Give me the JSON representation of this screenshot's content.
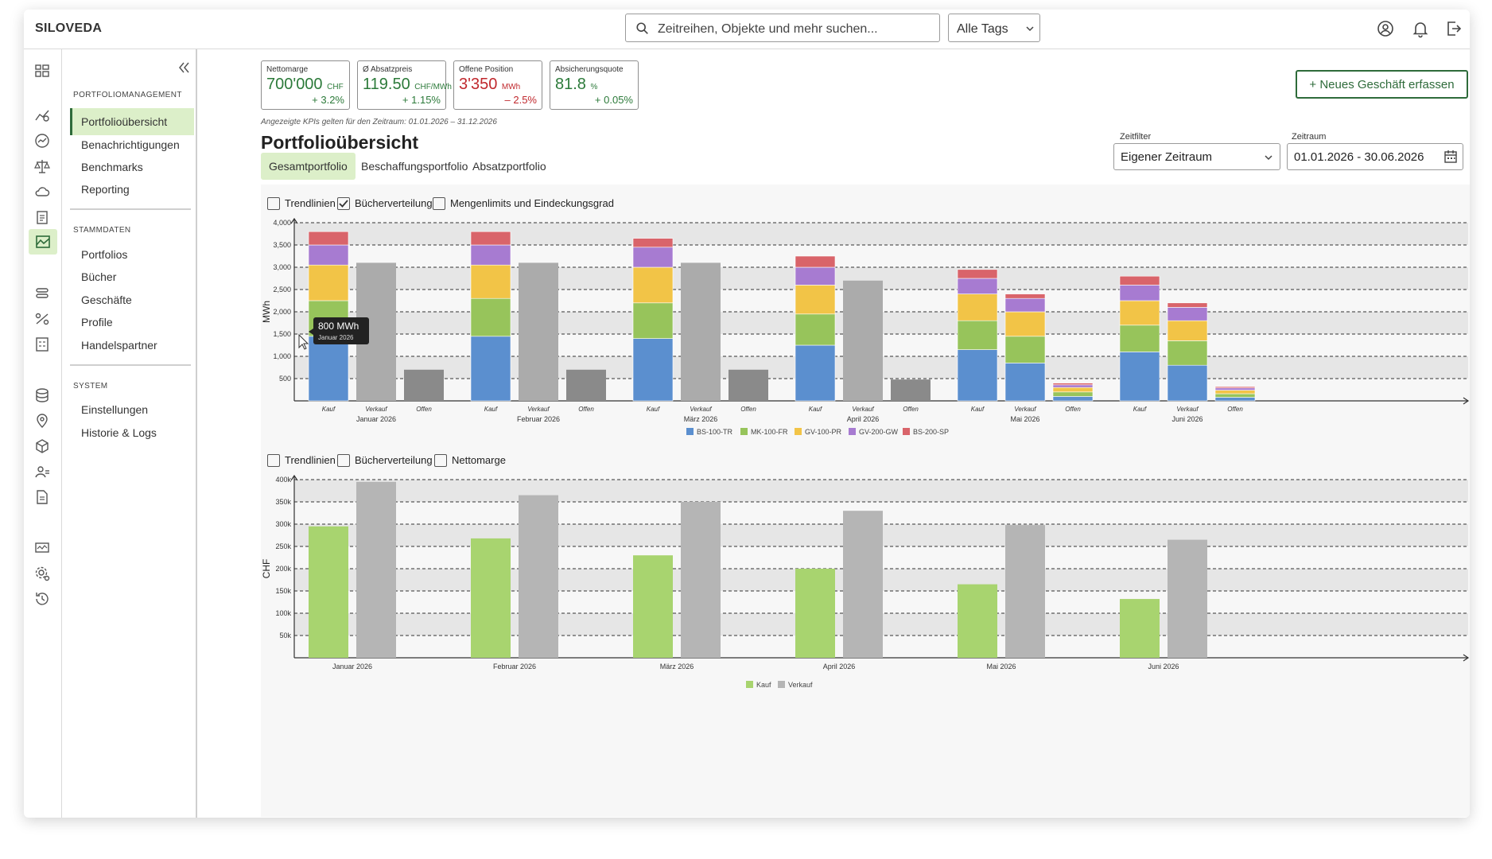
{
  "app": {
    "brand": "SILOVEDA"
  },
  "search": {
    "placeholder": "Zeitreihen, Objekte und mehr suchen...",
    "tags": "Alle Tags"
  },
  "sidebar": {
    "sections": [
      {
        "title": "PORTFOLIOMANAGEMENT",
        "items": [
          "Portfolioübersicht",
          "Benachrichtigungen",
          "Benchmarks",
          "Reporting"
        ]
      },
      {
        "title": "STAMMDATEN",
        "items": [
          "Portfolios",
          "Bücher",
          "Geschäfte",
          "Profile",
          "Handelspartner"
        ]
      },
      {
        "title": "SYSTEM",
        "items": [
          "Einstellungen",
          "Historie & Logs"
        ]
      }
    ],
    "active": "Portfolioübersicht"
  },
  "kpis": [
    {
      "label": "Nettomarge",
      "value": "700'000",
      "unit": "CHF",
      "delta": "+ 3.2%",
      "negative": false
    },
    {
      "label": "Ø Absatzpreis",
      "value": "119.50",
      "unit": "CHF/MWh",
      "delta": "+ 1.15%",
      "negative": false
    },
    {
      "label": "Offene Position",
      "value": "3'350",
      "unit": "MWh",
      "delta": "– 2.5%",
      "negative": true
    },
    {
      "label": "Absicherungsquote",
      "value": "81.8",
      "unit": "%",
      "delta": "+ 0.05%",
      "negative": false
    }
  ],
  "kpi_note": "Angezeigte KPIs gelten für den Zeitraum: 01.01.2026 – 31.12.2026",
  "new_button": "+ Neues Geschäft erfassen",
  "page_title": "Portfolioübersicht",
  "tabs": [
    "Gesamtportfolio",
    "Beschaffungsportfolio",
    "Absatzportfolio"
  ],
  "filters": {
    "zeitfilter_label": "Zeitfilter",
    "zeitfilter_value": "Eigener Zeitraum",
    "zeitraum_label": "Zeitraum",
    "zeitraum_value": "01.01.2026 - 30.06.2026"
  },
  "chart1_options": [
    {
      "label": "Trendlinien",
      "checked": false
    },
    {
      "label": "Bücherverteilung",
      "checked": true
    },
    {
      "label": "Mengenlimits und Eindeckungsgrad",
      "checked": false
    }
  ],
  "chart2_options": [
    {
      "label": "Trendlinien",
      "checked": false
    },
    {
      "label": "Bücherverteilung",
      "checked": false
    },
    {
      "label": "Nettomarge",
      "checked": false
    }
  ],
  "tooltip": {
    "value": "800 MWh",
    "month": "Januar 2026"
  },
  "colors": {
    "BS-100-TR": "#5b8fcf",
    "MK-100-FR": "#97c45b",
    "GV-100-PR": "#f2c447",
    "GV-200-GW": "#a77bd1",
    "BS-200-SP": "#d9646a",
    "verkauf": "#ababab",
    "offen": "#8a8a8a",
    "kauf2": "#a8d46f",
    "verkauf2": "#b5b5b5",
    "accent": "#2e6b3a"
  },
  "chart_data": [
    {
      "type": "bar",
      "ylabel": "MWh",
      "ylim": [
        0,
        4000
      ],
      "yticks": [
        "500",
        "1,000",
        "1,500",
        "2,000",
        "2,500",
        "3,000",
        "3,500",
        "4,000"
      ],
      "months": [
        "Januar 2026",
        "Februar 2026",
        "März 2026",
        "April 2026",
        "Mai 2026",
        "Juni 2026"
      ],
      "bar_labels": [
        "Kauf",
        "Verkauf",
        "Offen"
      ],
      "legend": [
        "BS-100-TR",
        "MK-100-FR",
        "GV-100-PR",
        "GV-200-GW",
        "BS-200-SP"
      ],
      "kauf": [
        [
          1450,
          800,
          800,
          450,
          300
        ],
        [
          1450,
          850,
          750,
          450,
          300
        ],
        [
          1400,
          800,
          800,
          450,
          200
        ],
        [
          1250,
          700,
          650,
          400,
          250
        ],
        [
          1150,
          650,
          600,
          350,
          200
        ],
        [
          1100,
          600,
          550,
          350,
          200
        ]
      ],
      "verkauf": [
        3100,
        3100,
        3100,
        2700,
        null,
        null
      ],
      "verkauf_stacked": [
        null,
        null,
        null,
        null,
        [
          850,
          600,
          550,
          300,
          100
        ],
        [
          800,
          550,
          450,
          300,
          100
        ]
      ],
      "offen": [
        700,
        700,
        700,
        480,
        null,
        null
      ],
      "offen_stacked": [
        null,
        null,
        null,
        null,
        [
          100,
          100,
          100,
          60,
          40
        ],
        [
          80,
          80,
          80,
          50,
          30
        ]
      ]
    },
    {
      "type": "bar",
      "ylabel": "CHF",
      "ylim": [
        0,
        400000
      ],
      "yticks": [
        "50k",
        "100k",
        "150k",
        "200k",
        "250k",
        "300k",
        "350k",
        "400k"
      ],
      "categories": [
        "Januar 2026",
        "Februar 2026",
        "März 2026",
        "April 2026",
        "Mai 2026",
        "Juni 2026"
      ],
      "series": [
        {
          "name": "Kauf",
          "values": [
            295000,
            268000,
            230000,
            200000,
            165000,
            132000
          ]
        },
        {
          "name": "Verkauf",
          "values": [
            395000,
            365000,
            350000,
            330000,
            298000,
            265000
          ]
        }
      ]
    }
  ]
}
